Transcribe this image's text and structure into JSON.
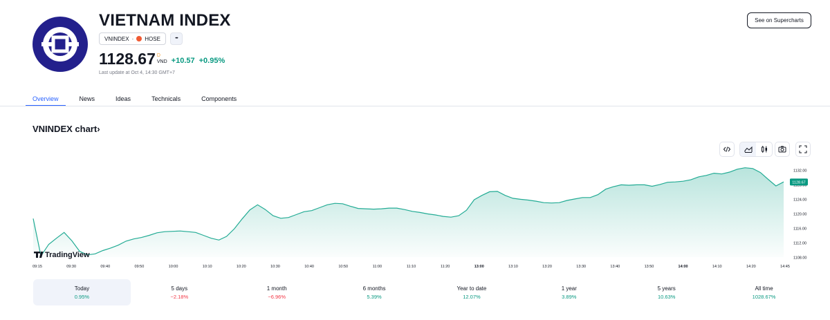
{
  "header": {
    "title": "VIETNAM INDEX",
    "symbol": "VNINDEX",
    "exchange": "HOSE",
    "more_label": "•••",
    "price": "1128.67",
    "price_marker": "D",
    "currency": "VND",
    "change": "+10.57",
    "change_pct": "+0.95%",
    "last_update": "Last update at Oct 4, 14:30 GMT+7",
    "supercharts_label": "See on Supercharts"
  },
  "tabs": [
    {
      "label": "Overview",
      "active": true
    },
    {
      "label": "News"
    },
    {
      "label": "Ideas"
    },
    {
      "label": "Technicals"
    },
    {
      "label": "Components"
    }
  ],
  "chart_title": "VNINDEX chart›",
  "watermark": "TradingView",
  "colors": {
    "accent": "#2962ff",
    "up": "#089981",
    "down": "#f23645",
    "logo": "#23208c",
    "line": "#22ab94"
  },
  "icons": {
    "embed": "code-icon",
    "area": "area-chart-icon",
    "candle": "candlestick-icon",
    "snapshot": "camera-icon",
    "fullscreen": "fullscreen-icon"
  },
  "chart_data": {
    "type": "area",
    "title": "VNINDEX chart›",
    "xlabel": "",
    "ylabel": "",
    "x_ticks": [
      "09:15",
      "09:30",
      "09:40",
      "09:50",
      "10:00",
      "10:10",
      "10:20",
      "10:30",
      "10:40",
      "10:50",
      "11:00",
      "11:10",
      "11:20",
      "13:00",
      "13:10",
      "13:20",
      "13:30",
      "13:40",
      "13:50",
      "14:00",
      "14:10",
      "14:20",
      "14:45"
    ],
    "x_ticks_bold": [
      "13:00",
      "14:00"
    ],
    "y_ticks": [
      "1108.00",
      "1112.00",
      "1116.00",
      "1120.00",
      "1124.00",
      "1128.00",
      "1132.00"
    ],
    "ylim": [
      1108,
      1133.5
    ],
    "last_value": "1128.67",
    "grid": false,
    "series": [
      {
        "values": [
          1118.6,
          1108.3,
          1111.5,
          1113.2,
          1114.8,
          1112.5,
          1109.6,
          1108.6,
          1108.9,
          1109.8,
          1110.5,
          1111.3,
          1112.4,
          1113.0,
          1113.4,
          1114.0,
          1114.7,
          1115.0,
          1115.1,
          1115.2,
          1115.0,
          1114.8,
          1114.0,
          1113.2,
          1112.7,
          1113.7,
          1115.8,
          1118.5,
          1121.0,
          1122.4,
          1121.1,
          1119.4,
          1118.7,
          1118.9,
          1119.7,
          1120.5,
          1120.8,
          1121.6,
          1122.4,
          1122.8,
          1122.7,
          1122.0,
          1121.4,
          1121.3,
          1121.2,
          1121.3,
          1121.5,
          1121.5,
          1121.1,
          1120.6,
          1120.3,
          1119.9,
          1119.6,
          1119.2,
          1119.0,
          1119.4,
          1120.9,
          1123.8,
          1125.0,
          1126.0,
          1126.1,
          1125.0,
          1124.2,
          1123.9,
          1123.7,
          1123.4,
          1123.0,
          1122.9,
          1123.0,
          1123.6,
          1124.0,
          1124.4,
          1124.4,
          1125.2,
          1126.7,
          1127.4,
          1127.9,
          1127.8,
          1127.9,
          1127.9,
          1127.5,
          1128.0,
          1128.6,
          1128.7,
          1128.9,
          1129.3,
          1130.1,
          1130.5,
          1131.1,
          1130.9,
          1131.4,
          1132.2,
          1132.6,
          1132.4,
          1131.3,
          1129.4,
          1127.6,
          1128.7
        ]
      }
    ]
  },
  "periods": [
    {
      "label": "Today",
      "value": "0.95%",
      "dir": "pos",
      "selected": true
    },
    {
      "label": "5 days",
      "value": "−2.18%",
      "dir": "neg"
    },
    {
      "label": "1 month",
      "value": "−6.96%",
      "dir": "neg"
    },
    {
      "label": "6 months",
      "value": "5.39%",
      "dir": "pos"
    },
    {
      "label": "Year to date",
      "value": "12.07%",
      "dir": "pos"
    },
    {
      "label": "1 year",
      "value": "3.89%",
      "dir": "pos"
    },
    {
      "label": "5 years",
      "value": "10.63%",
      "dir": "pos"
    },
    {
      "label": "All time",
      "value": "1028.67%",
      "dir": "pos"
    }
  ]
}
